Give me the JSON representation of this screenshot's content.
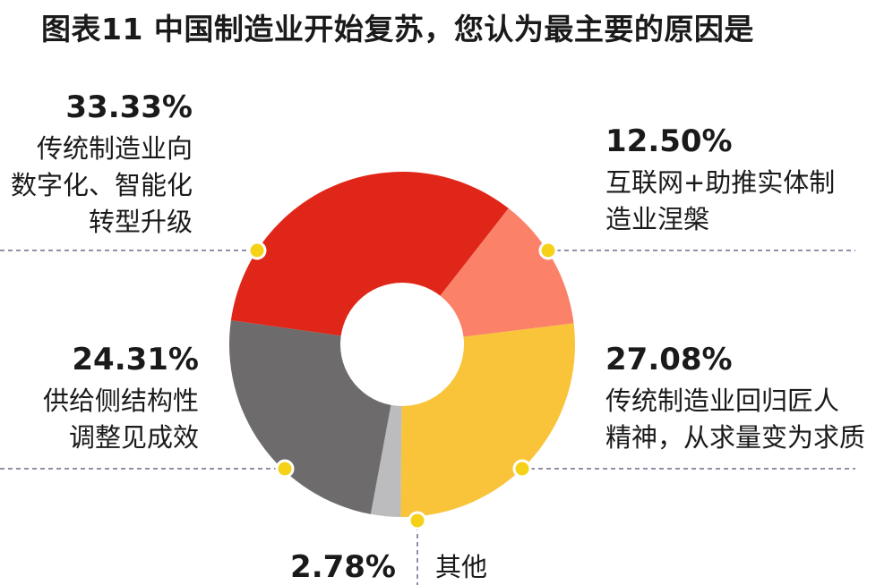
{
  "title": "图表11 中国制造业开始复苏，您认为最主要的原因是",
  "colors": {
    "red": "#e02618",
    "salmon": "#fb8269",
    "yellow": "#f9c43a",
    "silver": "#bcbcbe",
    "gray": "#6d6b6c",
    "marker": "#f5d218",
    "guide": "#6c6c8e"
  },
  "chart_data": {
    "type": "pie",
    "donut": true,
    "slices": [
      {
        "pct_text": "33.33%",
        "value": 33.33,
        "lines": [
          "传统制造业向",
          "数字化、智能化",
          "转型升级"
        ],
        "color": "#e02618"
      },
      {
        "pct_text": "12.50%",
        "value": 12.5,
        "lines": [
          "互联网+助推实体制",
          "造业涅槃"
        ],
        "color": "#fb8269"
      },
      {
        "pct_text": "27.08%",
        "value": 27.08,
        "lines": [
          "传统制造业回归匠人",
          "精神，从求量变为求质"
        ],
        "color": "#f9c43a"
      },
      {
        "pct_text": "2.78%",
        "value": 2.78,
        "lines": [
          "其他"
        ],
        "color": "#bcbcbe"
      },
      {
        "pct_text": "24.31%",
        "value": 24.31,
        "lines": [
          "供给侧结构性",
          "调整见成效"
        ],
        "color": "#6d6b6c"
      }
    ]
  }
}
